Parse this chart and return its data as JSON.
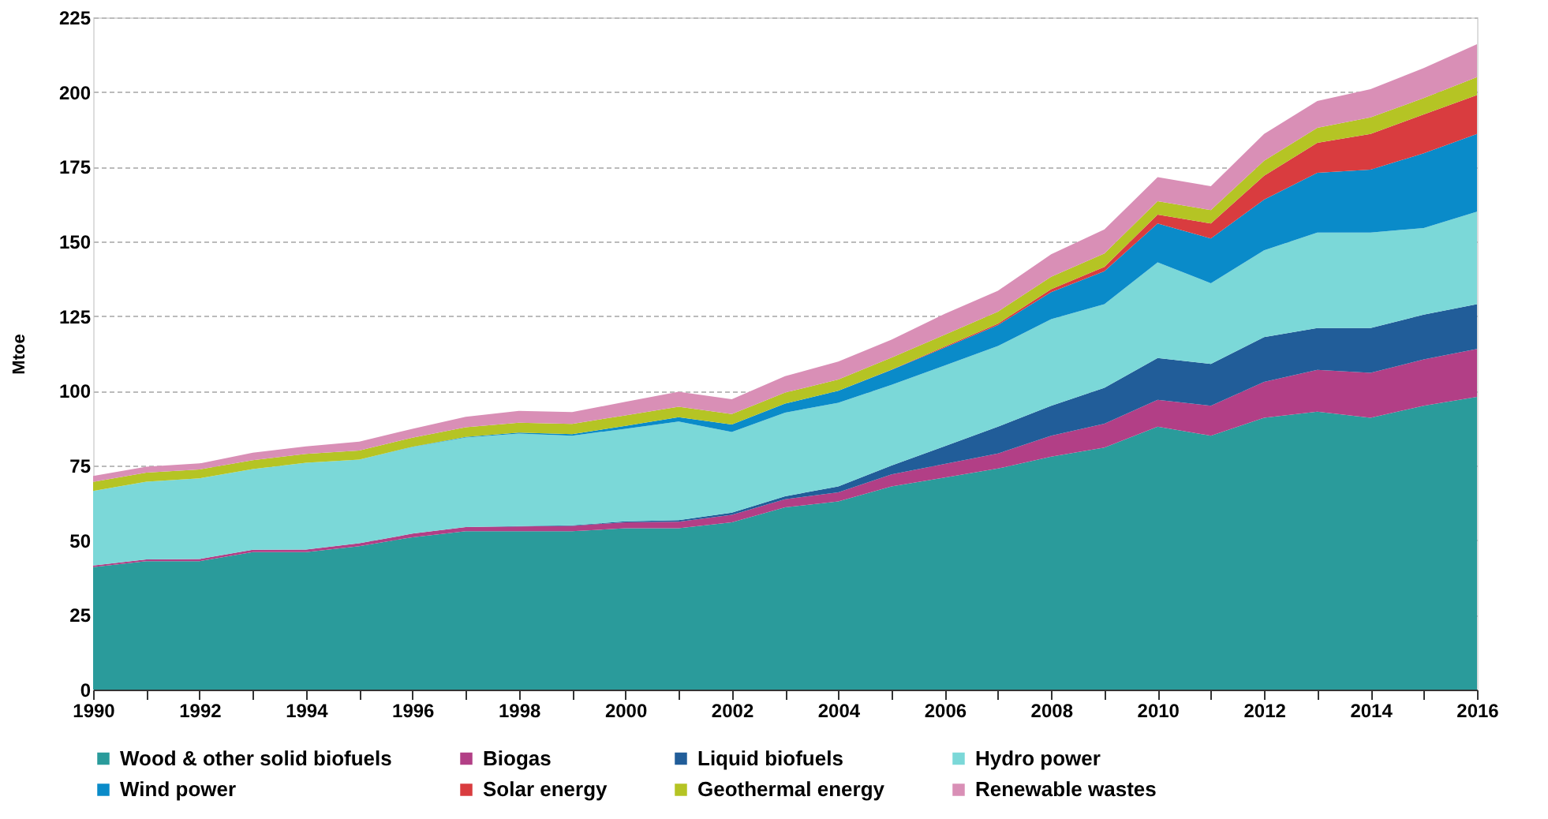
{
  "chart_data": {
    "type": "area",
    "stacked": true,
    "ylabel": "Mtoe",
    "x": [
      1990,
      1991,
      1992,
      1993,
      1994,
      1995,
      1996,
      1997,
      1998,
      1999,
      2000,
      2001,
      2002,
      2003,
      2004,
      2005,
      2006,
      2007,
      2008,
      2009,
      2010,
      2011,
      2012,
      2013,
      2014,
      2015,
      2016
    ],
    "xlim": [
      1990,
      2016
    ],
    "xticks": [
      1990,
      {
        "value": 1991,
        "label": null
      },
      1992,
      {
        "value": 1993,
        "label": null
      },
      1994,
      {
        "value": 1995,
        "label": null
      },
      1996,
      {
        "value": 1997,
        "label": null
      },
      1998,
      {
        "value": 1999,
        "label": null
      },
      2000,
      {
        "value": 2001,
        "label": null
      },
      2002,
      {
        "value": 2003,
        "label": null
      },
      2004,
      {
        "value": 2005,
        "label": null
      },
      2006,
      {
        "value": 2007,
        "label": null
      },
      2008,
      {
        "value": 2009,
        "label": null
      },
      2010,
      {
        "value": 2011,
        "label": null
      },
      2012,
      {
        "value": 2013,
        "label": null
      },
      2014,
      {
        "value": 2015,
        "label": null
      },
      2016
    ],
    "ylim": [
      0,
      225
    ],
    "yticks": [
      0,
      25,
      50,
      75,
      100,
      125,
      150,
      175,
      200,
      225
    ],
    "grid": "y",
    "legend": "bottom",
    "series": [
      {
        "name": "Wood & other solid biofuels",
        "color": "#2a9b9b",
        "values": [
          41,
          43,
          43,
          46,
          46,
          48,
          51,
          53,
          53,
          53,
          54,
          54,
          56,
          61,
          63,
          68,
          71,
          74,
          78,
          81,
          88,
          85,
          91,
          93,
          91,
          95,
          98
        ]
      },
      {
        "name": "Biogas",
        "color": "#b23f86",
        "values": [
          0.5,
          0.6,
          0.7,
          0.8,
          0.9,
          1,
          1.2,
          1.4,
          1.6,
          1.8,
          2,
          2.2,
          2.5,
          2.7,
          3,
          4,
          4.5,
          5,
          7,
          8,
          9,
          10,
          12,
          14,
          15,
          15.5,
          16
        ]
      },
      {
        "name": "Liquid biofuels",
        "color": "#215d99",
        "values": [
          0,
          0,
          0,
          0,
          0,
          0,
          0,
          0,
          0.1,
          0.2,
          0.3,
          0.5,
          0.7,
          1,
          2,
          3,
          6,
          9,
          10,
          12,
          14,
          14,
          15,
          14,
          15,
          15,
          15
        ]
      },
      {
        "name": "Hydro power",
        "color": "#7bd8d8",
        "values": [
          25,
          26,
          27,
          27,
          29,
          28,
          29,
          30,
          31,
          30,
          31,
          33,
          27,
          28,
          28,
          27,
          27,
          27,
          29,
          28,
          32,
          27,
          29,
          32,
          32,
          29,
          31
        ]
      },
      {
        "name": "Wind power",
        "color": "#0a8bc9",
        "values": [
          0,
          0,
          0,
          0,
          0,
          0,
          0.1,
          0.2,
          0.3,
          0.5,
          1,
          1.5,
          2.5,
          3,
          4,
          5,
          6,
          7,
          9,
          11,
          13,
          15,
          17,
          20,
          21,
          25,
          26
        ]
      },
      {
        "name": "Solar energy",
        "color": "#d93c3f",
        "values": [
          0,
          0,
          0,
          0,
          0,
          0,
          0,
          0,
          0,
          0,
          0,
          0,
          0,
          0,
          0,
          0.1,
          0.3,
          0.5,
          1,
          1.5,
          3,
          5,
          8,
          10,
          12,
          13,
          13
        ]
      },
      {
        "name": "Geothermal energy",
        "color": "#b5c424",
        "values": [
          3,
          3,
          3,
          3,
          3,
          3,
          3,
          3.2,
          3.3,
          3.4,
          3.5,
          3.5,
          3.5,
          3.7,
          3.8,
          4,
          4,
          4,
          4.2,
          4.5,
          4.5,
          4.5,
          5,
          5,
          5.5,
          5.5,
          6
        ]
      },
      {
        "name": "Renewable wastes",
        "color": "#d98fb6",
        "values": [
          2,
          2,
          2,
          2.5,
          2.5,
          3,
          3,
          3.5,
          4,
          4,
          4.5,
          5,
          5,
          5.5,
          6,
          6,
          7,
          7,
          7.5,
          8,
          8,
          8,
          9,
          9,
          9.5,
          10,
          11
        ]
      }
    ]
  }
}
